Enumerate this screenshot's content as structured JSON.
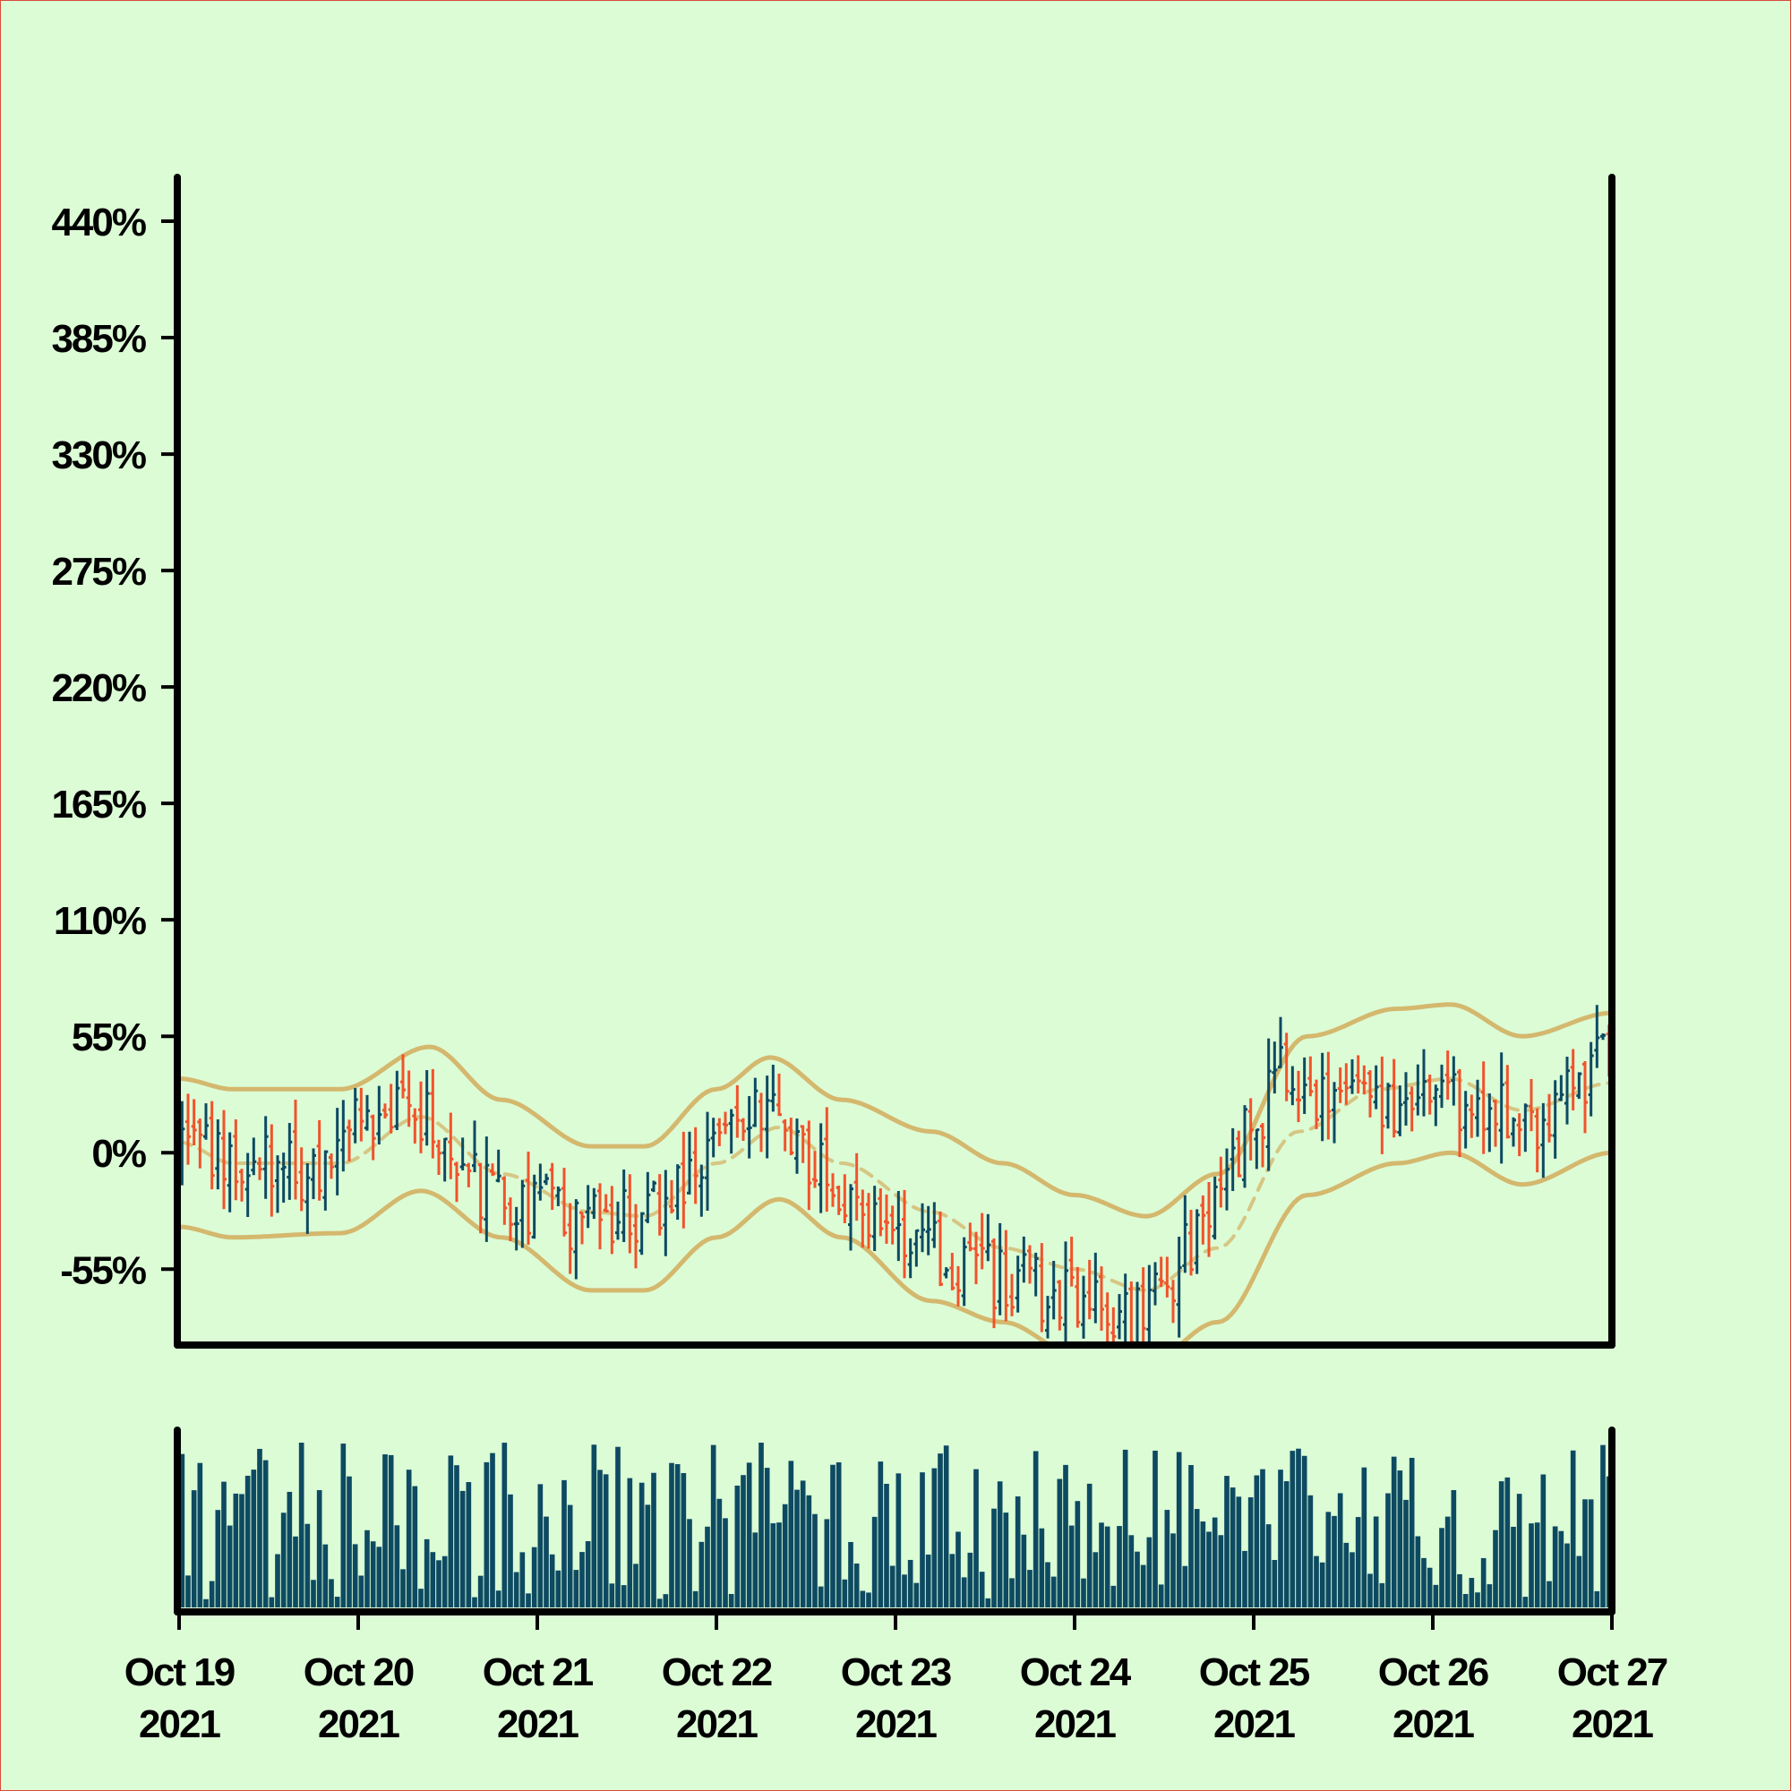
{
  "chart_data": {
    "type": "ohlc",
    "title": "",
    "xlabel": "",
    "ylabel": "",
    "colors": {
      "background": "#dcfcd6",
      "up": "#0d4a62",
      "down": "#f0532c",
      "bands": "#d4b86e",
      "axis": "#000000",
      "volume": "#0d4a62"
    },
    "y_ticks": [
      -55,
      0,
      55,
      110,
      165,
      220,
      275,
      330,
      385,
      440
    ],
    "y_tick_labels": [
      "-55%",
      "0%",
      "55%",
      "110%",
      "165%",
      "220%",
      "275%",
      "330%",
      "385%",
      "440%"
    ],
    "ylim": [
      -90,
      462
    ],
    "x_ticks": [
      {
        "line1": "Oct 19",
        "line2": "2021",
        "day": 0
      },
      {
        "line1": "Oct 20",
        "line2": "2021",
        "day": 1
      },
      {
        "line1": "Oct 21",
        "line2": "2021",
        "day": 2
      },
      {
        "line1": "Oct 22",
        "line2": "2021",
        "day": 3
      },
      {
        "line1": "Oct 23",
        "line2": "2021",
        "day": 4
      },
      {
        "line1": "Oct 24",
        "line2": "2021",
        "day": 5
      },
      {
        "line1": "Oct 25",
        "line2": "2021",
        "day": 6
      },
      {
        "line1": "Oct 26",
        "line2": "2021",
        "day": 7
      },
      {
        "line1": "Oct 27",
        "line2": "2021",
        "day": 8
      }
    ],
    "xlim_days": [
      0,
      8
    ],
    "bars_per_day": 30,
    "close_path": [
      {
        "day": 0.0,
        "value": 5
      },
      {
        "day": 0.3,
        "value": -5
      },
      {
        "day": 0.7,
        "value": -10
      },
      {
        "day": 1.0,
        "value": 15
      },
      {
        "day": 1.3,
        "value": 20
      },
      {
        "day": 1.6,
        "value": -15
      },
      {
        "day": 2.0,
        "value": -25
      },
      {
        "day": 2.3,
        "value": -35
      },
      {
        "day": 2.7,
        "value": -25
      },
      {
        "day": 3.0,
        "value": 5
      },
      {
        "day": 3.2,
        "value": 25
      },
      {
        "day": 3.4,
        "value": 5
      },
      {
        "day": 3.7,
        "value": -15
      },
      {
        "day": 4.0,
        "value": -35
      },
      {
        "day": 4.3,
        "value": -50
      },
      {
        "day": 4.6,
        "value": -60
      },
      {
        "day": 5.0,
        "value": -70
      },
      {
        "day": 5.3,
        "value": -75
      },
      {
        "day": 5.55,
        "value": -55
      },
      {
        "day": 5.8,
        "value": -20
      },
      {
        "day": 6.0,
        "value": 15
      },
      {
        "day": 6.2,
        "value": 40
      },
      {
        "day": 6.5,
        "value": 20
      },
      {
        "day": 6.8,
        "value": 25
      },
      {
        "day": 7.0,
        "value": 30
      },
      {
        "day": 7.3,
        "value": 20
      },
      {
        "day": 7.6,
        "value": 15
      },
      {
        "day": 8.0,
        "value": 45
      }
    ],
    "bands": {
      "middle": [
        {
          "day": 0.0,
          "value": 5
        },
        {
          "day": 0.3,
          "value": -5
        },
        {
          "day": 0.9,
          "value": -5
        },
        {
          "day": 1.35,
          "value": 17
        },
        {
          "day": 1.8,
          "value": -10
        },
        {
          "day": 2.3,
          "value": -28
        },
        {
          "day": 2.6,
          "value": -30
        },
        {
          "day": 3.0,
          "value": -5
        },
        {
          "day": 3.35,
          "value": 12
        },
        {
          "day": 3.7,
          "value": -5
        },
        {
          "day": 4.2,
          "value": -28
        },
        {
          "day": 4.6,
          "value": -45
        },
        {
          "day": 5.0,
          "value": -55
        },
        {
          "day": 5.4,
          "value": -65
        },
        {
          "day": 5.8,
          "value": -45
        },
        {
          "day": 6.25,
          "value": 10
        },
        {
          "day": 6.7,
          "value": 30
        },
        {
          "day": 7.1,
          "value": 35
        },
        {
          "day": 7.5,
          "value": 20
        },
        {
          "day": 8.0,
          "value": 33
        }
      ],
      "upper": [
        {
          "day": 0.0,
          "value": 35
        },
        {
          "day": 0.3,
          "value": 30
        },
        {
          "day": 0.9,
          "value": 30
        },
        {
          "day": 1.4,
          "value": 50
        },
        {
          "day": 1.8,
          "value": 25
        },
        {
          "day": 2.3,
          "value": 3
        },
        {
          "day": 2.6,
          "value": 3
        },
        {
          "day": 3.0,
          "value": 30
        },
        {
          "day": 3.3,
          "value": 45
        },
        {
          "day": 3.7,
          "value": 25
        },
        {
          "day": 4.2,
          "value": 10
        },
        {
          "day": 4.6,
          "value": -5
        },
        {
          "day": 5.0,
          "value": -20
        },
        {
          "day": 5.4,
          "value": -30
        },
        {
          "day": 5.8,
          "value": -10
        },
        {
          "day": 6.3,
          "value": 55
        },
        {
          "day": 6.8,
          "value": 68
        },
        {
          "day": 7.1,
          "value": 70
        },
        {
          "day": 7.5,
          "value": 55
        },
        {
          "day": 8.0,
          "value": 66
        }
      ],
      "lower": [
        {
          "day": 0.0,
          "value": -35
        },
        {
          "day": 0.3,
          "value": -40
        },
        {
          "day": 0.9,
          "value": -38
        },
        {
          "day": 1.35,
          "value": -18
        },
        {
          "day": 1.8,
          "value": -40
        },
        {
          "day": 2.3,
          "value": -65
        },
        {
          "day": 2.6,
          "value": -65
        },
        {
          "day": 3.0,
          "value": -40
        },
        {
          "day": 3.35,
          "value": -22
        },
        {
          "day": 3.7,
          "value": -40
        },
        {
          "day": 4.2,
          "value": -70
        },
        {
          "day": 4.6,
          "value": -80
        },
        {
          "day": 5.0,
          "value": -95
        },
        {
          "day": 5.4,
          "value": -100
        },
        {
          "day": 5.8,
          "value": -80
        },
        {
          "day": 6.3,
          "value": -20
        },
        {
          "day": 6.8,
          "value": -5
        },
        {
          "day": 7.1,
          "value": 0
        },
        {
          "day": 7.5,
          "value": -15
        },
        {
          "day": 8.0,
          "value": 0
        }
      ]
    }
  }
}
